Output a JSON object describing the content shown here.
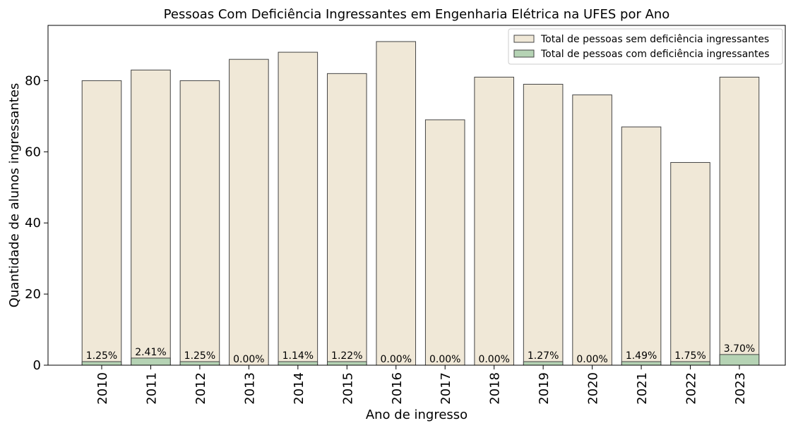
{
  "chart_data": {
    "type": "bar",
    "overlay": true,
    "title": "Pessoas Com Deficiência Ingressantes em Engenharia Elétrica na UFES por Ano",
    "xlabel": "Ano de ingresso",
    "ylabel": "Quantidade de alunos ingressantes",
    "categories": [
      "2010",
      "2011",
      "2012",
      "2013",
      "2014",
      "2015",
      "2016",
      "2017",
      "2018",
      "2019",
      "2020",
      "2021",
      "2022",
      "2023"
    ],
    "series": [
      {
        "name": "Total de pessoas sem deficiência ingressantes",
        "color": "#f0e8d7",
        "values": [
          80,
          83,
          80,
          86,
          88,
          82,
          91,
          69,
          81,
          79,
          76,
          67,
          57,
          81
        ]
      },
      {
        "name": "Total de pessoas com deficiência ingressantes",
        "color": "#b5d3b4",
        "values": [
          1,
          2,
          1,
          0,
          1,
          1,
          0,
          0,
          0,
          1,
          0,
          1,
          1,
          3
        ]
      }
    ],
    "annotations": [
      "1.25%",
      "2.41%",
      "1.25%",
      "0.00%",
      "1.14%",
      "1.22%",
      "0.00%",
      "0.00%",
      "0.00%",
      "1.27%",
      "0.00%",
      "1.49%",
      "1.75%",
      "3.70%"
    ],
    "ylim": [
      0,
      95.55
    ],
    "yticks": [
      0,
      20,
      40,
      60,
      80
    ],
    "legend": "upper right"
  }
}
